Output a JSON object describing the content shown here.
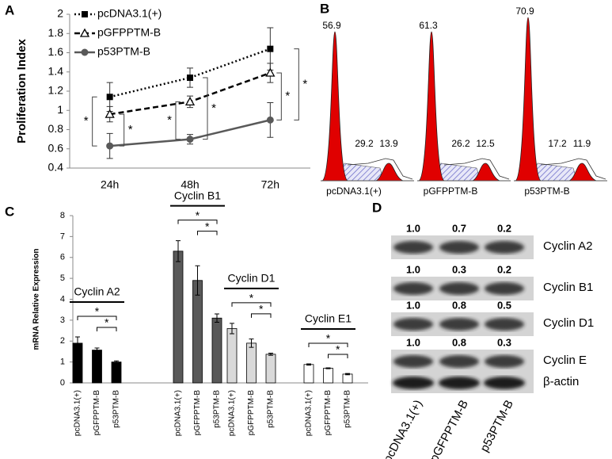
{
  "chart_data": [
    {
      "type": "line",
      "label": "A",
      "ylabel": "Proliferation Index",
      "categories": [
        "24h",
        "48h",
        "72h"
      ],
      "ylim": [
        0.4,
        2
      ],
      "yticks": [
        0.4,
        0.6,
        0.8,
        1,
        1.2,
        1.4,
        1.6,
        1.8,
        2
      ],
      "series": [
        {
          "name": "pcDNA3.1(+)",
          "color": "#000000",
          "dash": "dotted",
          "marker": "square",
          "values": [
            1.14,
            1.34,
            1.64
          ],
          "errors": [
            0.15,
            0.1,
            0.22
          ]
        },
        {
          "name": "pGFPPTM-B",
          "color": "#000000",
          "dash": "dashed",
          "marker": "triangle",
          "values": [
            0.96,
            1.09,
            1.39
          ],
          "errors": [
            0.08,
            0.06,
            0.1
          ]
        },
        {
          "name": "p53PTM-B",
          "color": "#595959",
          "dash": "solid",
          "marker": "circle",
          "values": [
            0.63,
            0.7,
            0.9
          ],
          "errors": [
            0.13,
            0.05,
            0.18
          ]
        }
      ],
      "significance": [
        "*",
        "*",
        "*",
        "*",
        "*",
        "*"
      ]
    },
    {
      "type": "bar",
      "label": "C",
      "ylabel": "mRNA Relative Expression",
      "ylim": [
        0,
        8
      ],
      "yticks": [
        0,
        1,
        2,
        3,
        4,
        5,
        6,
        7,
        8
      ],
      "categories": [
        "pcDNA3.1(+)",
        "pGFPPTM-B",
        "p53PTM-B"
      ],
      "groups": [
        {
          "name": "Cyclin A2",
          "color": "#000000",
          "values": [
            1.9,
            1.57,
            1.0
          ],
          "errors": [
            0.3,
            0.1,
            0.05
          ],
          "significance": [
            "*",
            "*"
          ]
        },
        {
          "name": "Cyclin B1",
          "color": "#595959",
          "values": [
            6.3,
            4.9,
            3.1
          ],
          "errors": [
            0.5,
            0.7,
            0.2
          ],
          "significance": [
            "*",
            "*"
          ]
        },
        {
          "name": "Cyclin D1",
          "color": "#d9d9d9",
          "values": [
            2.6,
            1.9,
            1.37
          ],
          "errors": [
            0.25,
            0.2,
            0.05
          ],
          "significance": [
            "*",
            "*"
          ]
        },
        {
          "name": "Cyclin E1",
          "color": "#ffffff",
          "values": [
            0.88,
            0.7,
            0.42
          ],
          "errors": [
            0.03,
            0.02,
            0.03
          ],
          "significance": [
            "*",
            "*"
          ]
        }
      ]
    }
  ],
  "panel_b": {
    "label": "B",
    "samples": [
      {
        "name": "pcDNA3.1(+)",
        "peaks": [
          56.9,
          29.2,
          13.9
        ]
      },
      {
        "name": "pGFPPTM-B",
        "peaks": [
          61.3,
          26.2,
          12.5
        ]
      },
      {
        "name": "p53PTM-B",
        "peaks": [
          70.9,
          17.2,
          11.9
        ]
      }
    ]
  },
  "panel_d": {
    "label": "D",
    "lanes": [
      "pcDNA3.1(+)",
      "pGFPPTM-B",
      "p53PTM-B"
    ],
    "rows": [
      {
        "name": "Cyclin A2",
        "values": [
          "1.0",
          "0.7",
          "0.2"
        ]
      },
      {
        "name": "Cyclin B1",
        "values": [
          "1.0",
          "0.3",
          "0.2"
        ]
      },
      {
        "name": "Cyclin D1",
        "values": [
          "1.0",
          "0.8",
          "0.5"
        ]
      },
      {
        "name": "Cyclin E",
        "values": [
          "1.0",
          "0.8",
          "0.3"
        ]
      }
    ],
    "control": "β-actin"
  }
}
